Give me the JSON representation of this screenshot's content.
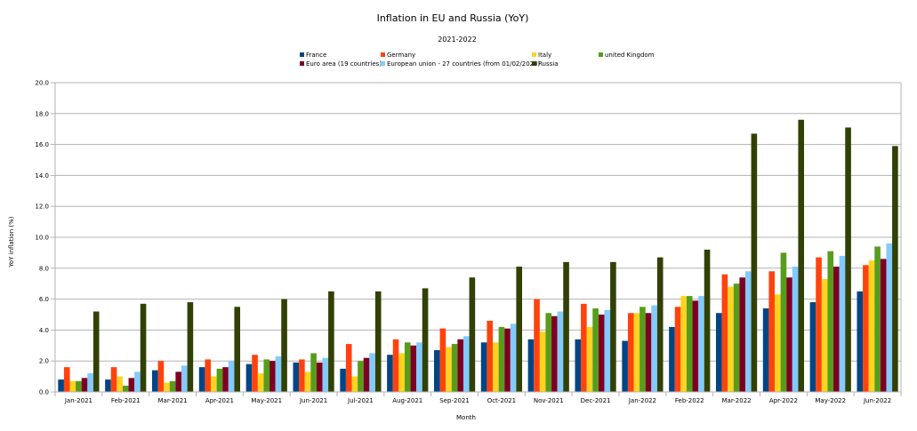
{
  "chart_data": {
    "type": "bar",
    "title": "Inflation in EU and Russia (YoY)",
    "subtitle": "2021-2022",
    "xlabel": "Month",
    "ylabel": "YoY inflation (%)",
    "ylim": [
      0,
      20
    ],
    "yticks": [
      "0.0",
      "2.0",
      "4.0",
      "6.0",
      "8.0",
      "10.0",
      "12.0",
      "14.0",
      "16.0",
      "18.0",
      "20.0"
    ],
    "grid": true,
    "legend_position": "top",
    "categories": [
      "Jan-2021",
      "Feb-2021",
      "Mar-2021",
      "Apr-2021",
      "May-2021",
      "Jun-2021",
      "Jul-2021",
      "Aug-2021",
      "Sep-2021",
      "Oct-2021",
      "Nov-2021",
      "Dec-2021",
      "Jan-2022",
      "Feb-2022",
      "Mar-2022",
      "Apr-2022",
      "May-2022",
      "Jun-2022"
    ],
    "series": [
      {
        "name": "France",
        "color": "#004586",
        "values": [
          0.8,
          0.8,
          1.4,
          1.6,
          1.8,
          1.9,
          1.5,
          2.4,
          2.7,
          3.2,
          3.4,
          3.4,
          3.3,
          4.2,
          5.1,
          5.4,
          5.8,
          6.5
        ]
      },
      {
        "name": "Germany",
        "color": "#ff420e",
        "values": [
          1.6,
          1.6,
          2.0,
          2.1,
          2.4,
          2.1,
          3.1,
          3.4,
          4.1,
          4.6,
          6.0,
          5.7,
          5.1,
          5.5,
          7.6,
          7.8,
          8.7,
          8.2
        ]
      },
      {
        "name": "Italy",
        "color": "#ffd320",
        "values": [
          0.7,
          1.0,
          0.6,
          1.0,
          1.2,
          1.3,
          1.0,
          2.5,
          2.9,
          3.2,
          3.9,
          4.2,
          5.1,
          6.2,
          6.8,
          6.3,
          7.3,
          8.5
        ]
      },
      {
        "name": "united Kingdom",
        "color": "#579d1c",
        "values": [
          0.7,
          0.4,
          0.7,
          1.5,
          2.1,
          2.5,
          2.0,
          3.2,
          3.1,
          4.2,
          5.1,
          5.4,
          5.5,
          6.2,
          7.0,
          9.0,
          9.1,
          9.4
        ]
      },
      {
        "name": "Euro area (19 countries)",
        "color": "#7e0021",
        "values": [
          0.9,
          0.9,
          1.3,
          1.6,
          2.0,
          1.9,
          2.2,
          3.0,
          3.4,
          4.1,
          4.9,
          5.0,
          5.1,
          5.9,
          7.4,
          7.4,
          8.1,
          8.6
        ]
      },
      {
        "name": "European union - 27 countries (from 01/02/2020)",
        "color": "#83caff",
        "values": [
          1.2,
          1.3,
          1.7,
          2.0,
          2.3,
          2.2,
          2.5,
          3.2,
          3.6,
          4.4,
          5.2,
          5.3,
          5.6,
          6.2,
          7.8,
          8.1,
          8.8,
          9.6
        ]
      },
      {
        "name": "Russia",
        "color": "#314004",
        "values": [
          5.2,
          5.7,
          5.8,
          5.5,
          6.0,
          6.5,
          6.5,
          6.7,
          7.4,
          8.1,
          8.4,
          8.4,
          8.7,
          9.2,
          16.7,
          17.6,
          17.1,
          15.9
        ]
      }
    ]
  }
}
